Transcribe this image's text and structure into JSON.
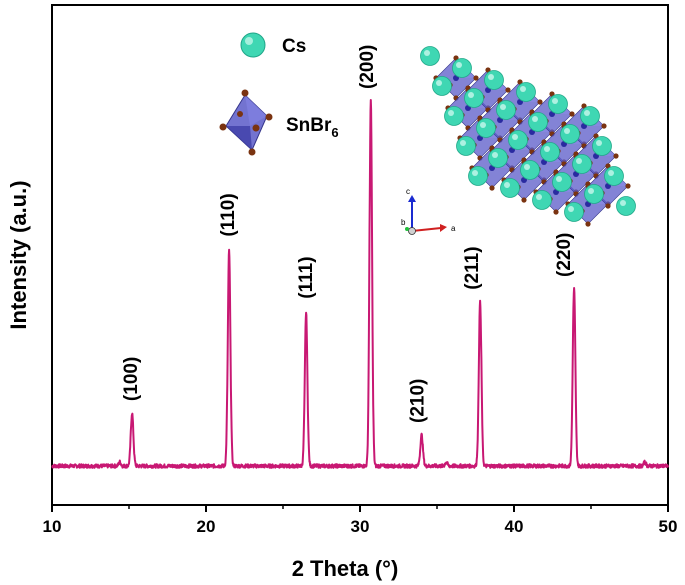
{
  "chart_data": {
    "type": "line",
    "xlabel": "2 Theta (°)",
    "ylabel": "Intensity (a.u.)",
    "xlim": [
      10,
      50
    ],
    "x_ticks": [
      10,
      20,
      30,
      40,
      50
    ],
    "y_ticks_labeled": false,
    "grid": false,
    "line_color": "#c81873",
    "baseline": 0,
    "peaks": [
      {
        "x": 15.2,
        "y": 14.5,
        "label": "(100)"
      },
      {
        "x": 21.5,
        "y": 59,
        "label": "(110)"
      },
      {
        "x": 26.5,
        "y": 42,
        "label": "(111)"
      },
      {
        "x": 30.7,
        "y": 100,
        "label": "(200)"
      },
      {
        "x": 34.0,
        "y": 8.5,
        "label": "(210)"
      },
      {
        "x": 37.8,
        "y": 45,
        "label": "(211)"
      },
      {
        "x": 43.9,
        "y": 48.5,
        "label": "(220)"
      }
    ],
    "legend": {
      "cs_label": "Cs",
      "octahedron_label": "SnBr",
      "octahedron_subscript": "6",
      "cs_color": "#3fd7b3",
      "octahedron_color": "#5a5ac8",
      "br_color": "#7a3310"
    },
    "inset": {
      "description_axes": [
        "c",
        "b",
        "a"
      ]
    }
  }
}
